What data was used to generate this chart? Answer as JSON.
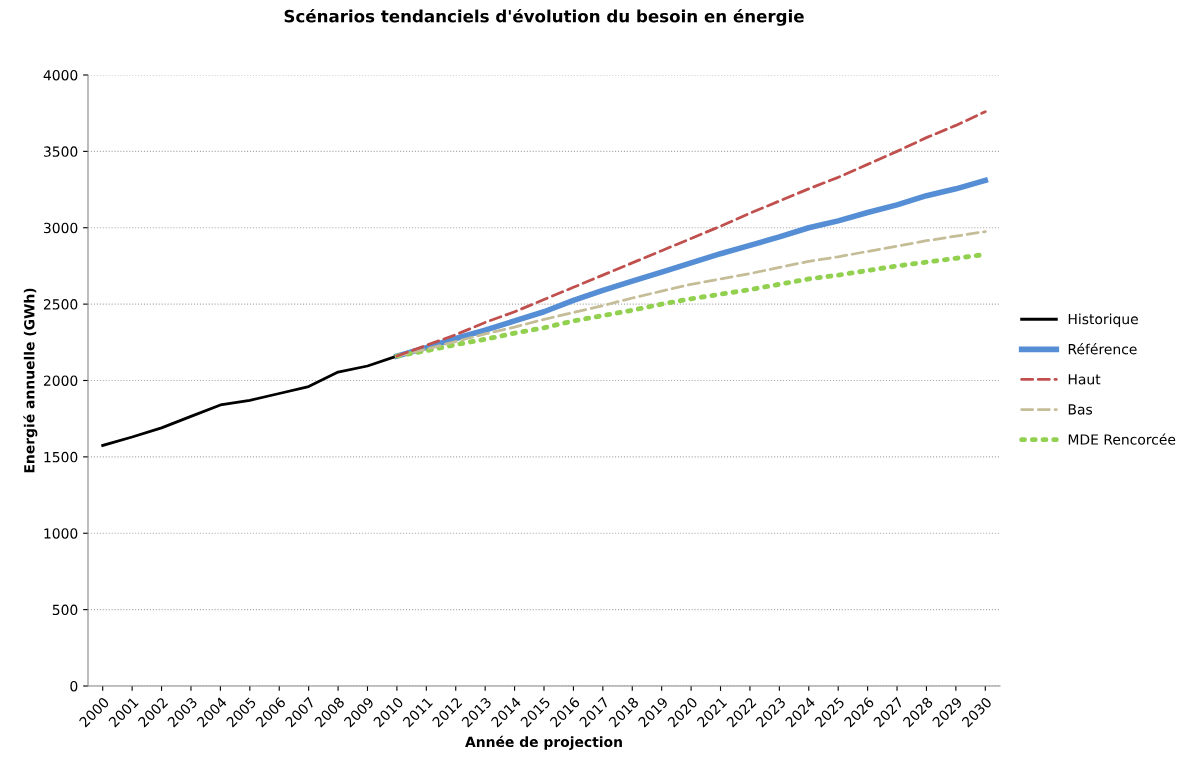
{
  "chart_data": {
    "type": "line",
    "title": "Scénarios tendanciels d'évolution du besoin en énergie",
    "xlabel": "Année de projection",
    "ylabel": "Energié annuelle (GWh)",
    "categories": [
      "2000",
      "2001",
      "2002",
      "2003",
      "2004",
      "2005",
      "2006",
      "2007",
      "2008",
      "2009",
      "2010",
      "2011",
      "2012",
      "2013",
      "2014",
      "2015",
      "2016",
      "2017",
      "2018",
      "2019",
      "2020",
      "2021",
      "2022",
      "2023",
      "2024",
      "2025",
      "2026",
      "2027",
      "2028",
      "2029",
      "2030"
    ],
    "ylim": [
      0,
      4000
    ],
    "yticks": [
      0,
      500,
      1000,
      1500,
      2000,
      2500,
      3000,
      3500,
      4000
    ],
    "grid": "y",
    "legend": "right",
    "marker": "none",
    "series": [
      {
        "name": "Historique",
        "color": "#000000",
        "line_style": "solid",
        "values": [
          1575,
          1630,
          1690,
          1765,
          1840,
          1870,
          1915,
          1960,
          2055,
          2095,
          2160,
          null,
          null,
          null,
          null,
          null,
          null,
          null,
          null,
          null,
          null,
          null,
          null,
          null,
          null,
          null,
          null,
          null,
          null,
          null,
          null
        ]
      },
      {
        "name": "Référence",
        "color": "#558ed5",
        "line_style": "solid",
        "values": [
          null,
          null,
          null,
          null,
          null,
          null,
          null,
          null,
          null,
          null,
          2160,
          2215,
          2275,
          2330,
          2390,
          2450,
          2525,
          2590,
          2650,
          2710,
          2770,
          2830,
          2885,
          2940,
          3000,
          3045,
          3100,
          3150,
          3210,
          3255,
          3310
        ]
      },
      {
        "name": "Haut",
        "color": "#c0504d",
        "line_style": "dashed",
        "values": [
          null,
          null,
          null,
          null,
          null,
          null,
          null,
          null,
          null,
          null,
          2160,
          2230,
          2300,
          2380,
          2450,
          2530,
          2610,
          2690,
          2770,
          2850,
          2930,
          3010,
          3095,
          3175,
          3255,
          3330,
          3415,
          3500,
          3590,
          3670,
          3760
        ]
      },
      {
        "name": "Bas",
        "color": "#c4bd97",
        "line_style": "dashed",
        "values": [
          null,
          null,
          null,
          null,
          null,
          null,
          null,
          null,
          null,
          null,
          2160,
          2205,
          2255,
          2305,
          2350,
          2400,
          2445,
          2490,
          2540,
          2585,
          2630,
          2665,
          2700,
          2740,
          2780,
          2810,
          2845,
          2880,
          2915,
          2945,
          2975
        ]
      },
      {
        "name": "MDE Rencorcée",
        "color": "#92d050",
        "line_style": "dotted",
        "values": [
          null,
          null,
          null,
          null,
          null,
          null,
          null,
          null,
          null,
          null,
          2160,
          2195,
          2235,
          2270,
          2310,
          2345,
          2390,
          2425,
          2460,
          2500,
          2535,
          2565,
          2595,
          2630,
          2665,
          2690,
          2720,
          2750,
          2775,
          2800,
          2825
        ]
      }
    ]
  }
}
